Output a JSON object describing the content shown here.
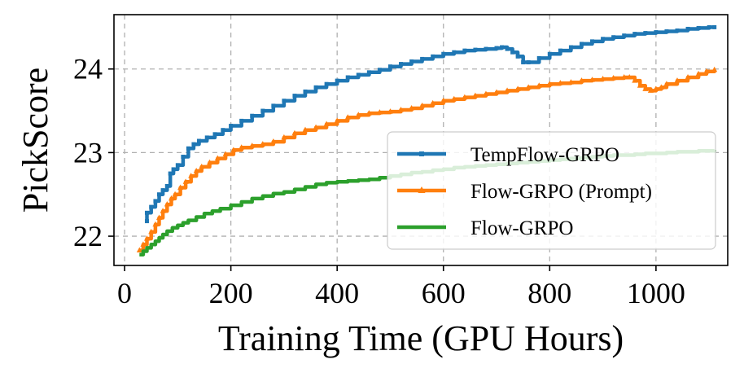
{
  "chart_data": {
    "type": "line",
    "title": "",
    "xlabel": "Training Time (GPU Hours)",
    "ylabel": "PickScore",
    "xlim": [
      -20,
      1135
    ],
    "ylim": [
      21.65,
      24.65
    ],
    "xticks": [
      0,
      200,
      400,
      600,
      800,
      1000
    ],
    "yticks": [
      22,
      23,
      24
    ],
    "grid": true,
    "legend_position": "lower-right",
    "series": [
      {
        "name": "TempFlow-GRPO",
        "color": "#1f77b4",
        "marker": "square",
        "x": [
          42,
          42,
          50,
          58,
          65,
          72,
          80,
          86,
          92,
          100,
          110,
          120,
          130,
          140,
          155,
          170,
          185,
          200,
          220,
          240,
          260,
          280,
          300,
          320,
          340,
          360,
          380,
          400,
          420,
          440,
          460,
          480,
          500,
          520,
          540,
          560,
          580,
          600,
          620,
          640,
          660,
          680,
          700,
          710,
          720,
          730,
          740,
          750,
          760,
          780,
          800,
          820,
          840,
          860,
          880,
          900,
          920,
          940,
          960,
          980,
          1000,
          1020,
          1040,
          1060,
          1080,
          1100,
          1110
        ],
        "y": [
          22.18,
          22.28,
          22.35,
          22.42,
          22.5,
          22.55,
          22.6,
          22.75,
          22.8,
          22.85,
          22.95,
          23.05,
          23.1,
          23.14,
          23.18,
          23.22,
          23.27,
          23.32,
          23.38,
          23.44,
          23.5,
          23.56,
          23.62,
          23.68,
          23.73,
          23.78,
          23.82,
          23.86,
          23.9,
          23.93,
          23.96,
          23.99,
          24.03,
          24.06,
          24.09,
          24.12,
          24.15,
          24.18,
          24.2,
          24.22,
          24.23,
          24.24,
          24.25,
          24.26,
          24.24,
          24.2,
          24.15,
          24.08,
          24.08,
          24.13,
          24.18,
          24.22,
          24.26,
          24.3,
          24.33,
          24.36,
          24.38,
          24.4,
          24.42,
          24.43,
          24.44,
          24.45,
          24.46,
          24.48,
          24.49,
          24.5,
          24.5
        ]
      },
      {
        "name": "Flow-GRPO (Prompt)",
        "color": "#ff7f0e",
        "marker": "triangle",
        "x": [
          28,
          35,
          42,
          50,
          58,
          65,
          72,
          80,
          88,
          95,
          105,
          115,
          125,
          135,
          145,
          160,
          175,
          190,
          205,
          220,
          240,
          260,
          280,
          300,
          320,
          340,
          360,
          380,
          400,
          420,
          440,
          460,
          480,
          500,
          520,
          540,
          560,
          580,
          600,
          620,
          640,
          660,
          680,
          700,
          720,
          740,
          760,
          780,
          800,
          820,
          840,
          860,
          880,
          900,
          920,
          940,
          950,
          960,
          970,
          980,
          990,
          1000,
          1010,
          1020,
          1040,
          1060,
          1080,
          1095,
          1110
        ],
        "y": [
          21.83,
          21.9,
          21.97,
          22.05,
          22.14,
          22.22,
          22.3,
          22.38,
          22.45,
          22.5,
          22.58,
          22.65,
          22.72,
          22.78,
          22.83,
          22.88,
          22.93,
          22.98,
          23.03,
          23.06,
          23.08,
          23.1,
          23.13,
          23.18,
          23.23,
          23.27,
          23.3,
          23.34,
          23.38,
          23.42,
          23.45,
          23.47,
          23.48,
          23.49,
          23.51,
          23.53,
          23.56,
          23.59,
          23.62,
          23.64,
          23.66,
          23.68,
          23.7,
          23.72,
          23.74,
          23.76,
          23.78,
          23.8,
          23.82,
          23.83,
          23.84,
          23.86,
          23.87,
          23.88,
          23.89,
          23.9,
          23.9,
          23.86,
          23.8,
          23.76,
          23.74,
          23.76,
          23.78,
          23.82,
          23.86,
          23.9,
          23.94,
          23.97,
          23.99
        ]
      },
      {
        "name": "Flow-GRPO",
        "color": "#2ca02c",
        "marker": "none",
        "x": [
          28,
          35,
          42,
          50,
          58,
          65,
          72,
          80,
          90,
          100,
          110,
          120,
          135,
          150,
          165,
          180,
          200,
          220,
          240,
          260,
          280,
          300,
          320,
          340,
          360,
          380,
          400,
          420,
          440,
          460,
          480,
          500,
          520,
          540,
          560,
          580,
          600,
          620,
          640,
          660,
          680,
          700,
          720,
          740,
          760,
          780,
          800,
          820,
          840,
          860,
          880,
          900,
          920,
          940,
          960,
          980,
          1000,
          1020,
          1040,
          1060,
          1080,
          1100,
          1110
        ],
        "y": [
          21.78,
          21.82,
          21.86,
          21.9,
          21.94,
          21.98,
          22.02,
          22.06,
          22.1,
          22.13,
          22.16,
          22.19,
          22.23,
          22.27,
          22.3,
          22.33,
          22.37,
          22.41,
          22.45,
          22.48,
          22.51,
          22.53,
          22.56,
          22.59,
          22.62,
          22.64,
          22.65,
          22.66,
          22.67,
          22.68,
          22.7,
          22.72,
          22.74,
          22.76,
          22.77,
          22.79,
          22.8,
          22.82,
          22.83,
          22.84,
          22.85,
          22.86,
          22.87,
          22.88,
          22.89,
          22.9,
          22.91,
          22.92,
          22.93,
          22.94,
          22.95,
          22.96,
          22.97,
          22.97,
          22.98,
          22.99,
          22.99,
          23.0,
          23.01,
          23.01,
          23.02,
          23.02,
          23.03
        ]
      }
    ]
  }
}
